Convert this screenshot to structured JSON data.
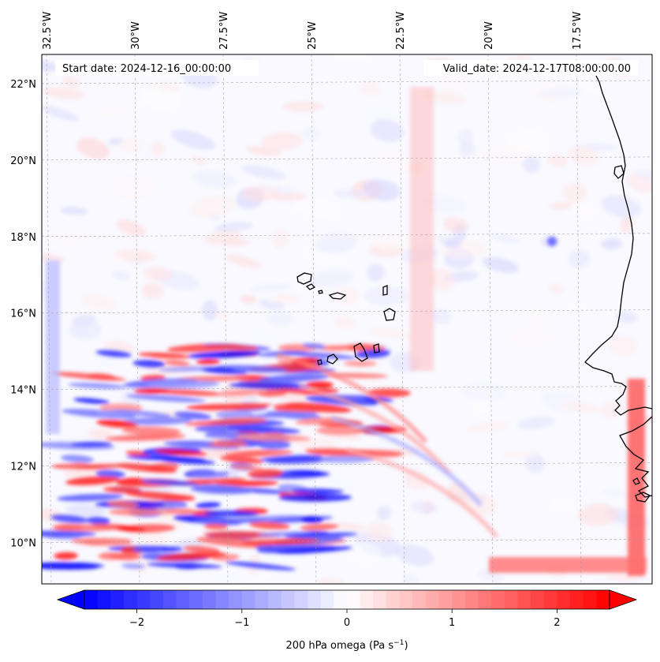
{
  "map": {
    "start_date": "Start date: 2024-12-16_00:00:00",
    "valid_date": "Valid_date: 2024-12-17T08:00:00.00",
    "lon_ticks": [
      {
        "lon": -32.5,
        "label": "32.5°W"
      },
      {
        "lon": -30.0,
        "label": "30°W"
      },
      {
        "lon": -27.5,
        "label": "27.5°W"
      },
      {
        "lon": -25.0,
        "label": "25°W"
      },
      {
        "lon": -22.5,
        "label": "22.5°W"
      },
      {
        "lon": -20.0,
        "label": "20°W"
      },
      {
        "lon": -17.5,
        "label": "17.5°W"
      }
    ],
    "lat_ticks": [
      {
        "lat": 22,
        "label": "22°N"
      },
      {
        "lat": 20,
        "label": "20°N"
      },
      {
        "lat": 18,
        "label": "18°N"
      },
      {
        "lat": 16,
        "label": "16°N"
      },
      {
        "lat": 14,
        "label": "14°N"
      },
      {
        "lat": 12,
        "label": "12°N"
      },
      {
        "lat": 10,
        "label": "10°N"
      }
    ],
    "gridlines": true
  },
  "colorbar": {
    "colormap": "bwr",
    "min": -2.5,
    "max": 2.5,
    "extend": "both",
    "ticks": [
      {
        "value": -2,
        "label": "−2"
      },
      {
        "value": -1,
        "label": "−1"
      },
      {
        "value": 0,
        "label": "0"
      },
      {
        "value": 1,
        "label": "1"
      },
      {
        "value": 2,
        "label": "2"
      }
    ],
    "label": "200 hPa omega (Pa s",
    "label_sup": "−1",
    "label_end": ")"
  },
  "colors": {
    "negative": "#0000ff",
    "neutral": "#ffffff",
    "positive": "#ff0000",
    "coastline": "#000000"
  }
}
